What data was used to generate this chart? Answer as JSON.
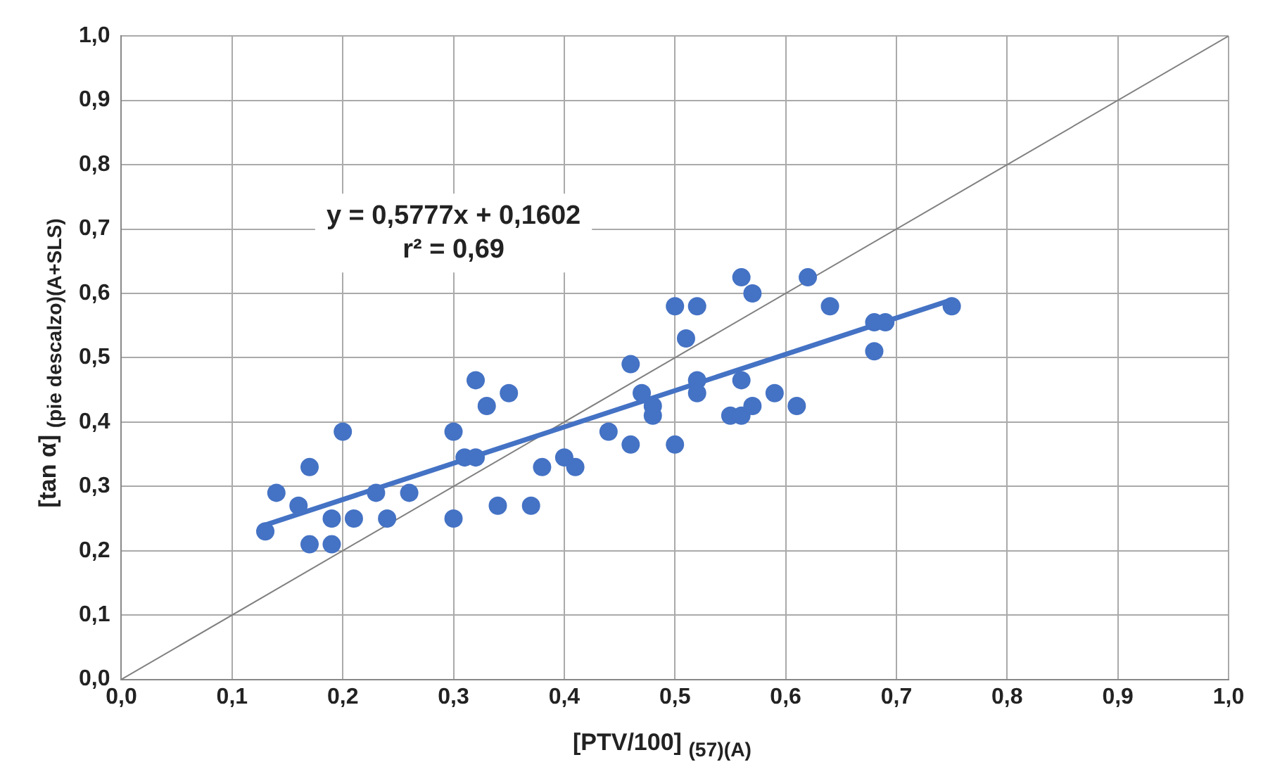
{
  "chart_data": {
    "type": "scatter",
    "xlabel": "[PTV/100] $_{(57)(A)}$",
    "ylabel": "[tan α] $_{(pie descalzo)(A+SLS)}$",
    "annotations": [
      "y = 0,5777x + 0,1602",
      "r² = 0,69"
    ],
    "series": [
      {
        "color": "#4472c4",
        "marker": "circle",
        "x": [
          0.13,
          0.14,
          0.16,
          0.17,
          0.17,
          0.19,
          0.19,
          0.2,
          0.21,
          0.23,
          0.24,
          0.26,
          0.3,
          0.3,
          0.31,
          0.32,
          0.32,
          0.33,
          0.34,
          0.35,
          0.37,
          0.38,
          0.4,
          0.41,
          0.44,
          0.46,
          0.46,
          0.47,
          0.48,
          0.48,
          0.5,
          0.5,
          0.51,
          0.52,
          0.52,
          0.52,
          0.55,
          0.56,
          0.56,
          0.56,
          0.57,
          0.57,
          0.59,
          0.61,
          0.62,
          0.64,
          0.68,
          0.68,
          0.69,
          0.75
        ],
        "values": [
          0.23,
          0.29,
          0.27,
          0.33,
          0.21,
          0.25,
          0.21,
          0.385,
          0.25,
          0.29,
          0.25,
          0.29,
          0.385,
          0.25,
          0.345,
          0.345,
          0.465,
          0.425,
          0.27,
          0.445,
          0.27,
          0.33,
          0.345,
          0.33,
          0.385,
          0.49,
          0.365,
          0.445,
          0.425,
          0.41,
          0.58,
          0.365,
          0.53,
          0.58,
          0.465,
          0.445,
          0.41,
          0.41,
          0.625,
          0.465,
          0.6,
          0.425,
          0.445,
          0.425,
          0.625,
          0.58,
          0.555,
          0.51,
          0.555,
          0.58
        ]
      },
      {
        "type": "line",
        "color": "#4472c4",
        "marker": "none",
        "x": [
          0.13,
          0.75
        ],
        "values": [
          0.24,
          0.59
        ]
      },
      {
        "type": "line",
        "color": "#808080",
        "marker": "none",
        "x": [
          0,
          1
        ],
        "values": [
          0,
          1
        ]
      }
    ],
    "xlim": [
      0,
      1
    ],
    "ylim": [
      0,
      1
    ],
    "xticks": [
      {
        "value": 0,
        "label": "0,0"
      },
      {
        "value": 0.1,
        "label": "0,1"
      },
      {
        "value": 0.2,
        "label": "0,2"
      },
      {
        "value": 0.3,
        "label": "0,3"
      },
      {
        "value": 0.4,
        "label": "0,4"
      },
      {
        "value": 0.5,
        "label": "0,5"
      },
      {
        "value": 0.6,
        "label": "0,6"
      },
      {
        "value": 0.7,
        "label": "0,7"
      },
      {
        "value": 0.8,
        "label": "0,8"
      },
      {
        "value": 0.9,
        "label": "0,9"
      },
      {
        "value": 1,
        "label": "1,0"
      }
    ],
    "yticks": [
      {
        "value": 0,
        "label": "0,0"
      },
      {
        "value": 0.1,
        "label": "0,1"
      },
      {
        "value": 0.2,
        "label": "0,2"
      },
      {
        "value": 0.3,
        "label": "0,3"
      },
      {
        "value": 0.4,
        "label": "0,4"
      },
      {
        "value": 0.5,
        "label": "0,5"
      },
      {
        "value": 0.6,
        "label": "0,6"
      },
      {
        "value": 0.7,
        "label": "0,7"
      },
      {
        "value": 0.8,
        "label": "0,8"
      },
      {
        "value": 0.9,
        "label": "0,9"
      },
      {
        "value": 1,
        "label": "1,0"
      }
    ],
    "grid": true,
    "line_style": "solid",
    "legend": false
  }
}
